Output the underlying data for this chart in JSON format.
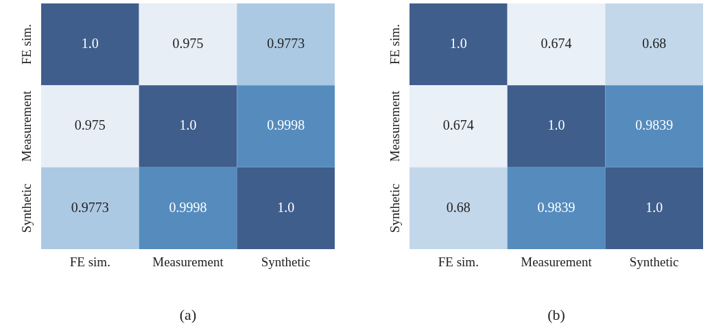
{
  "chart_data": [
    {
      "type": "heatmap",
      "categories": [
        "FE sim.",
        "Measurement",
        "Synthetic"
      ],
      "y_categories": [
        "FE sim.",
        "Measurement",
        "Synthetic"
      ],
      "cells": [
        [
          1.0,
          0.975,
          0.9773
        ],
        [
          0.975,
          1.0,
          0.9998
        ],
        [
          0.9773,
          0.9998,
          1.0
        ]
      ],
      "cell_labels": [
        [
          "1.0",
          "0.975",
          "0.9773"
        ],
        [
          "0.975",
          "1.0",
          "0.9998"
        ],
        [
          "0.9773",
          "0.9998",
          "1.0"
        ]
      ],
      "annotations": [
        "(a)"
      ]
    },
    {
      "type": "heatmap",
      "categories": [
        "FE sim.",
        "Measurement",
        "Synthetic"
      ],
      "y_categories": [
        "FE sim.",
        "Measurement",
        "Synthetic"
      ],
      "cells": [
        [
          1.0,
          0.674,
          0.68
        ],
        [
          0.674,
          1.0,
          0.9839
        ],
        [
          0.68,
          0.9839,
          1.0
        ]
      ],
      "cell_labels": [
        [
          "1.0",
          "0.674",
          "0.68"
        ],
        [
          "0.674",
          "1.0",
          "0.9839"
        ],
        [
          "0.68",
          "0.9839",
          "1.0"
        ]
      ],
      "annotations": [
        "(b)"
      ]
    }
  ]
}
